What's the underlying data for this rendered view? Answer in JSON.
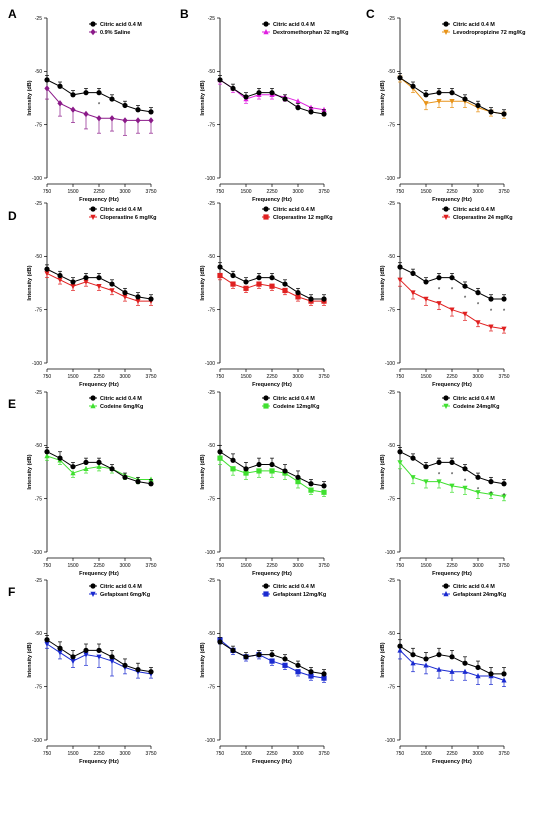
{
  "figure_labels": [
    "A",
    "B",
    "C",
    "D",
    "E",
    "F"
  ],
  "chart_data": [
    {
      "type": "line",
      "panel": "A",
      "xlabel": "Frequency (Hz)",
      "ylabel": "Intensity (dB)",
      "xlim": [
        750,
        3750
      ],
      "ylim": [
        -100,
        -25
      ],
      "xticks": [
        "750",
        "1500",
        "2250",
        "3000",
        "3750"
      ],
      "yticks": [
        "-25",
        "-50",
        "-75",
        "-100"
      ],
      "x": [
        750,
        1125,
        1500,
        1875,
        2250,
        2625,
        3000,
        3375,
        3750
      ],
      "series": [
        {
          "name": "Citric acid  0.4 M",
          "color": "#000000",
          "marker": "circle",
          "values": [
            -54,
            -57,
            -61,
            -60,
            -60,
            -63,
            -66,
            -68,
            -69
          ],
          "errors": [
            2,
            2,
            2,
            2,
            2,
            2,
            2,
            2,
            2
          ]
        },
        {
          "name": "0.9% Saline",
          "color": "#8b1a89",
          "marker": "diamond",
          "values": [
            -58,
            -65,
            -68,
            -70,
            -72,
            -72,
            -73,
            -73,
            -73
          ],
          "errors": [
            5,
            6,
            6,
            7,
            7,
            6,
            7,
            6,
            6
          ]
        }
      ],
      "annotations": [
        "*"
      ]
    },
    {
      "type": "line",
      "panel": "B",
      "xlabel": "Frequency (Hz)",
      "ylabel": "Intensity (dB)",
      "xlim": [
        750,
        3750
      ],
      "ylim": [
        -100,
        -25
      ],
      "xticks": [
        "750",
        "1500",
        "2250",
        "3000",
        "3750"
      ],
      "yticks": [
        "-25",
        "-50",
        "-75",
        "-100"
      ],
      "x": [
        750,
        1125,
        1500,
        1875,
        2250,
        2625,
        3000,
        3375,
        3750
      ],
      "series": [
        {
          "name": "Citric acid  0.4 M",
          "color": "#000000",
          "marker": "circle",
          "values": [
            -54,
            -58,
            -62,
            -60,
            -60,
            -63,
            -67,
            -69,
            -70
          ],
          "errors": [
            2,
            2,
            2,
            2,
            2,
            2,
            2,
            2,
            2
          ]
        },
        {
          "name": "Dextromethorphan 32 mg/Kg",
          "color": "#e020e0",
          "marker": "triangle-up",
          "values": [
            -54,
            -58,
            -63,
            -61,
            -61,
            -62,
            -64,
            -67,
            -68
          ],
          "errors": [
            2,
            2,
            2,
            2,
            2,
            2,
            2,
            2,
            2
          ]
        }
      ]
    },
    {
      "type": "line",
      "panel": "C",
      "xlabel": "Frequency (Hz)",
      "ylabel": "Intensity (dB)",
      "xlim": [
        750,
        3750
      ],
      "ylim": [
        -100,
        -25
      ],
      "xticks": [
        "750",
        "1500",
        "2250",
        "3000",
        "3750"
      ],
      "yticks": [
        "-25",
        "-50",
        "-75",
        "-100"
      ],
      "x": [
        750,
        1125,
        1500,
        1875,
        2250,
        2625,
        3000,
        3375,
        3750
      ],
      "series": [
        {
          "name": "Citric acid  0.4 M",
          "color": "#000000",
          "marker": "circle",
          "values": [
            -53,
            -57,
            -61,
            -60,
            -60,
            -63,
            -66,
            -69,
            -70
          ],
          "errors": [
            2,
            2,
            2,
            2,
            2,
            2,
            2,
            2,
            2
          ]
        },
        {
          "name": "Levodropropizine  72 mg/Kg",
          "color": "#e8941a",
          "marker": "triangle-down",
          "values": [
            -53,
            -58,
            -65,
            -64,
            -64,
            -64,
            -67,
            -69,
            -70
          ],
          "errors": [
            2,
            2,
            3,
            3,
            3,
            3,
            2,
            2,
            2
          ]
        }
      ]
    },
    {
      "type": "line",
      "panel": "D",
      "xlabel": "Frequency (Hz)",
      "ylabel": "Intensity (dB)",
      "xlim": [
        750,
        3750
      ],
      "ylim": [
        -100,
        -25
      ],
      "xticks": [
        "750",
        "1500",
        "2250",
        "3000",
        "3750"
      ],
      "yticks": [
        "-25",
        "-50",
        "-75",
        "-100"
      ],
      "x": [
        750,
        1125,
        1500,
        1875,
        2250,
        2625,
        3000,
        3375,
        3750
      ],
      "series": [
        {
          "name": "Citric acid  0.4 M",
          "color": "#000000",
          "marker": "circle",
          "values": [
            -56,
            -59,
            -62,
            -60,
            -60,
            -63,
            -67,
            -69,
            -70
          ],
          "errors": [
            2,
            2,
            2,
            2,
            2,
            2,
            2,
            2,
            2
          ]
        },
        {
          "name": "Cloperastine 6 mg/Kg",
          "color": "#e02020",
          "marker": "triangle-down",
          "values": [
            -58,
            -61,
            -64,
            -62,
            -64,
            -66,
            -69,
            -71,
            -71
          ],
          "errors": [
            2,
            2,
            2,
            2,
            2,
            2,
            2,
            2,
            2
          ]
        }
      ]
    },
    {
      "type": "line",
      "panel": "D2",
      "xlabel": "Frequency (Hz)",
      "ylabel": "Intensity (dB)",
      "xlim": [
        750,
        3750
      ],
      "ylim": [
        -100,
        -25
      ],
      "xticks": [
        "750",
        "1500",
        "2250",
        "3000",
        "3750"
      ],
      "yticks": [
        "-25",
        "-50",
        "-75",
        "-100"
      ],
      "x": [
        750,
        1125,
        1500,
        1875,
        2250,
        2625,
        3000,
        3375,
        3750
      ],
      "series": [
        {
          "name": "Citric acid  0.4 M",
          "color": "#000000",
          "marker": "circle",
          "values": [
            -55,
            -59,
            -62,
            -60,
            -60,
            -63,
            -67,
            -70,
            -70
          ],
          "errors": [
            2,
            2,
            2,
            2,
            2,
            2,
            2,
            2,
            2
          ]
        },
        {
          "name": "Cloperastine 12 mg/Kg",
          "color": "#e02020",
          "marker": "square",
          "values": [
            -59,
            -63,
            -65,
            -63,
            -64,
            -66,
            -69,
            -71,
            -71
          ],
          "errors": [
            2,
            2,
            2,
            2,
            2,
            2,
            2,
            2,
            2
          ]
        }
      ]
    },
    {
      "type": "line",
      "panel": "D3",
      "xlabel": "Frequency (Hz)",
      "ylabel": "Intensity (dB)",
      "xlim": [
        750,
        3750
      ],
      "ylim": [
        -100,
        -25
      ],
      "xticks": [
        "750",
        "1500",
        "2250",
        "3000",
        "3750"
      ],
      "yticks": [
        "-25",
        "-50",
        "-75",
        "-100"
      ],
      "x": [
        750,
        1125,
        1500,
        1875,
        2250,
        2625,
        3000,
        3375,
        3750
      ],
      "series": [
        {
          "name": "Citric acid  0.4 M",
          "color": "#000000",
          "marker": "circle",
          "values": [
            -55,
            -58,
            -62,
            -60,
            -60,
            -64,
            -67,
            -70,
            -70
          ],
          "errors": [
            2,
            2,
            2,
            2,
            2,
            2,
            2,
            2,
            2
          ]
        },
        {
          "name": "Cloperastine 24 mg/Kg",
          "color": "#e02020",
          "marker": "triangle-down",
          "values": [
            -61,
            -67,
            -70,
            -72,
            -75,
            -77,
            -81,
            -83,
            -84
          ],
          "errors": [
            3,
            3,
            3,
            3,
            3,
            3,
            2,
            2,
            2
          ]
        }
      ],
      "annotations": [
        "*",
        "*",
        "*",
        "*",
        "*",
        "*"
      ]
    },
    {
      "type": "line",
      "panel": "E",
      "xlabel": "Frequency (Hz)",
      "ylabel": "Intensity (dB)",
      "xlim": [
        750,
        3750
      ],
      "ylim": [
        -100,
        -25
      ],
      "xticks": [
        "750",
        "1500",
        "2250",
        "3000",
        "3750"
      ],
      "yticks": [
        "-25",
        "-50",
        "-75",
        "-100"
      ],
      "x": [
        750,
        1125,
        1500,
        1875,
        2250,
        2625,
        3000,
        3375,
        3750
      ],
      "series": [
        {
          "name": "Citric acid 0.4 M",
          "color": "#000000",
          "marker": "circle",
          "values": [
            -53,
            -56,
            -60,
            -58,
            -58,
            -61,
            -65,
            -67,
            -68
          ],
          "errors": [
            2,
            3,
            2,
            2,
            2,
            2,
            2,
            2,
            2
          ]
        },
        {
          "name": "Codeine  6mg/Kg",
          "color": "#40e030",
          "marker": "triangle-up",
          "values": [
            -55,
            -57,
            -63,
            -61,
            -60,
            -61,
            -64,
            -66,
            -66
          ],
          "errors": [
            2,
            2,
            2,
            2,
            2,
            2,
            2,
            2,
            2
          ]
        }
      ]
    },
    {
      "type": "line",
      "panel": "E2",
      "xlabel": "Frequency (Hz)",
      "ylabel": "Intensity (dB)",
      "xlim": [
        750,
        3750
      ],
      "ylim": [
        -100,
        -25
      ],
      "xticks": [
        "750",
        "1500",
        "2250",
        "3000",
        "3750"
      ],
      "yticks": [
        "-25",
        "-50",
        "-75",
        "-100"
      ],
      "x": [
        750,
        1125,
        1500,
        1875,
        2250,
        2625,
        3000,
        3375,
        3750
      ],
      "series": [
        {
          "name": "Citric acid 0.4 M",
          "color": "#000000",
          "marker": "circle",
          "values": [
            -53,
            -57,
            -61,
            -59,
            -59,
            -62,
            -65,
            -68,
            -69
          ],
          "errors": [
            3,
            3,
            3,
            3,
            3,
            3,
            3,
            2,
            2
          ]
        },
        {
          "name": "Codeine  12mg/Kg",
          "color": "#40e030",
          "marker": "square",
          "values": [
            -56,
            -61,
            -63,
            -62,
            -62,
            -63,
            -67,
            -71,
            -72
          ],
          "errors": [
            3,
            3,
            3,
            3,
            3,
            3,
            3,
            2,
            2
          ]
        }
      ]
    },
    {
      "type": "line",
      "panel": "E3",
      "xlabel": "Frequency (Hz)",
      "ylabel": "Intensity (dB)",
      "xlim": [
        750,
        3750
      ],
      "ylim": [
        -100,
        -25
      ],
      "xticks": [
        "750",
        "1500",
        "2250",
        "3000",
        "3750"
      ],
      "yticks": [
        "-25",
        "-50",
        "-75",
        "-100"
      ],
      "x": [
        750,
        1125,
        1500,
        1875,
        2250,
        2625,
        3000,
        3375,
        3750
      ],
      "series": [
        {
          "name": "Citric acid 0.4 M",
          "color": "#000000",
          "marker": "circle",
          "values": [
            -53,
            -56,
            -60,
            -58,
            -58,
            -61,
            -65,
            -67,
            -68
          ],
          "errors": [
            2,
            2,
            2,
            2,
            2,
            2,
            2,
            2,
            2
          ]
        },
        {
          "name": "Codeine  24mg/Kg",
          "color": "#40e030",
          "marker": "triangle-down",
          "values": [
            -58,
            -65,
            -67,
            -67,
            -69,
            -70,
            -72,
            -73,
            -74
          ],
          "errors": [
            3,
            3,
            3,
            3,
            3,
            3,
            3,
            2,
            2
          ]
        }
      ],
      "annotations": [
        "*",
        "*",
        "*",
        "*",
        "*",
        "*"
      ]
    },
    {
      "type": "line",
      "panel": "F",
      "xlabel": "Frequency (Hz)",
      "ylabel": "Intensity (dB)",
      "xlim": [
        750,
        3750
      ],
      "ylim": [
        -100,
        -25
      ],
      "xticks": [
        "750",
        "1500",
        "2250",
        "3000",
        "3750"
      ],
      "yticks": [
        "-25",
        "-50",
        "-75",
        "-100"
      ],
      "x": [
        750,
        1125,
        1500,
        1875,
        2250,
        2625,
        3000,
        3375,
        3750
      ],
      "series": [
        {
          "name": "Citric acid  0.4 M",
          "color": "#000000",
          "marker": "circle",
          "values": [
            -53,
            -57,
            -61,
            -58,
            -58,
            -61,
            -65,
            -67,
            -68
          ],
          "errors": [
            2,
            3,
            3,
            3,
            3,
            3,
            3,
            3,
            2
          ]
        },
        {
          "name": "Gefapixant   6mg/Kg",
          "color": "#1a2ad0",
          "marker": "triangle-down",
          "values": [
            -55,
            -59,
            -63,
            -60,
            -61,
            -63,
            -66,
            -68,
            -69
          ],
          "errors": [
            2,
            3,
            3,
            5,
            5,
            7,
            3,
            3,
            2
          ]
        }
      ]
    },
    {
      "type": "line",
      "panel": "F2",
      "xlabel": "Frequency (Hz)",
      "ylabel": "Intensity (dB)",
      "xlim": [
        750,
        3750
      ],
      "ylim": [
        -100,
        -25
      ],
      "xticks": [
        "750",
        "1500",
        "2250",
        "3000",
        "3750"
      ],
      "yticks": [
        "-25",
        "-50",
        "-75",
        "-100"
      ],
      "x": [
        750,
        1125,
        1500,
        1875,
        2250,
        2625,
        3000,
        3375,
        3750
      ],
      "series": [
        {
          "name": "Citric acid 0.4 M",
          "color": "#000000",
          "marker": "circle",
          "values": [
            -54,
            -58,
            -61,
            -60,
            -60,
            -62,
            -65,
            -68,
            -69
          ],
          "errors": [
            2,
            2,
            2,
            2,
            2,
            2,
            2,
            2,
            2
          ]
        },
        {
          "name": "Gefapixant  12mg/Kg",
          "color": "#1a2ad0",
          "marker": "square",
          "values": [
            -53,
            -58,
            -61,
            -60,
            -63,
            -65,
            -68,
            -70,
            -71
          ],
          "errors": [
            2,
            2,
            2,
            2,
            2,
            2,
            2,
            2,
            2
          ]
        }
      ]
    },
    {
      "type": "line",
      "panel": "F3",
      "xlabel": "Frequency (Hz)",
      "ylabel": "Intensity (dB)",
      "xlim": [
        750,
        3750
      ],
      "ylim": [
        -100,
        -25
      ],
      "xticks": [
        "750",
        "1500",
        "2250",
        "3000",
        "3750"
      ],
      "yticks": [
        "-25",
        "-50",
        "-75",
        "-100"
      ],
      "x": [
        750,
        1125,
        1500,
        1875,
        2250,
        2625,
        3000,
        3375,
        3750
      ],
      "series": [
        {
          "name": "Citric acid  0.4 M",
          "color": "#000000",
          "marker": "circle",
          "values": [
            -56,
            -60,
            -62,
            -60,
            -61,
            -64,
            -66,
            -69,
            -69
          ],
          "errors": [
            3,
            3,
            3,
            3,
            3,
            3,
            3,
            3,
            3
          ]
        },
        {
          "name": "Gefapixant  24mg/Kg",
          "color": "#1a2ad0",
          "marker": "triangle-up",
          "values": [
            -58,
            -64,
            -65,
            -67,
            -68,
            -68,
            -70,
            -70,
            -72
          ],
          "errors": [
            4,
            4,
            4,
            4,
            4,
            4,
            4,
            4,
            3
          ]
        }
      ]
    }
  ]
}
